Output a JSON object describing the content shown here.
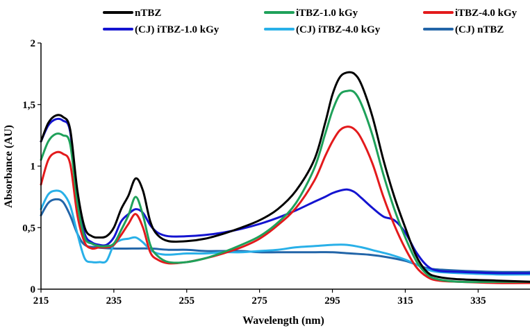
{
  "chart_data": {
    "type": "line",
    "title": "",
    "xlabel": "Wavelength (nm)",
    "ylabel": "Absorbance (AU)",
    "xlim": [
      215,
      350
    ],
    "ylim": [
      0,
      2
    ],
    "xticks": [
      "215",
      "235",
      "255",
      "275",
      "295",
      "315",
      "335"
    ],
    "yticks": [
      "0",
      "0,5",
      "1",
      "1,5",
      "2"
    ],
    "grid": false,
    "legend_position": "top",
    "series": [
      {
        "name": "nTBZ",
        "color": "#000000",
        "points": [
          [
            215,
            1.2
          ],
          [
            217,
            1.35
          ],
          [
            219,
            1.41
          ],
          [
            221,
            1.4
          ],
          [
            223,
            1.3
          ],
          [
            225,
            0.8
          ],
          [
            227,
            0.5
          ],
          [
            229,
            0.43
          ],
          [
            231,
            0.42
          ],
          [
            233,
            0.43
          ],
          [
            235,
            0.5
          ],
          [
            237,
            0.65
          ],
          [
            239,
            0.76
          ],
          [
            241,
            0.9
          ],
          [
            243,
            0.8
          ],
          [
            245,
            0.55
          ],
          [
            247,
            0.44
          ],
          [
            250,
            0.39
          ],
          [
            255,
            0.39
          ],
          [
            260,
            0.41
          ],
          [
            265,
            0.45
          ],
          [
            270,
            0.5
          ],
          [
            275,
            0.56
          ],
          [
            280,
            0.65
          ],
          [
            285,
            0.8
          ],
          [
            290,
            1.05
          ],
          [
            293,
            1.35
          ],
          [
            295,
            1.58
          ],
          [
            297,
            1.72
          ],
          [
            299,
            1.76
          ],
          [
            301,
            1.75
          ],
          [
            303,
            1.66
          ],
          [
            306,
            1.4
          ],
          [
            309,
            1.05
          ],
          [
            312,
            0.75
          ],
          [
            315,
            0.5
          ],
          [
            318,
            0.27
          ],
          [
            321,
            0.14
          ],
          [
            324,
            0.1
          ],
          [
            330,
            0.08
          ],
          [
            340,
            0.07
          ],
          [
            350,
            0.06
          ]
        ]
      },
      {
        "name": "iTBZ-1.0 kGy",
        "color": "#1fa15a",
        "points": [
          [
            215,
            1.05
          ],
          [
            217,
            1.2
          ],
          [
            219,
            1.26
          ],
          [
            221,
            1.25
          ],
          [
            223,
            1.18
          ],
          [
            225,
            0.7
          ],
          [
            227,
            0.42
          ],
          [
            229,
            0.37
          ],
          [
            231,
            0.35
          ],
          [
            233,
            0.35
          ],
          [
            235,
            0.37
          ],
          [
            237,
            0.48
          ],
          [
            239,
            0.6
          ],
          [
            241,
            0.75
          ],
          [
            243,
            0.6
          ],
          [
            245,
            0.36
          ],
          [
            247,
            0.27
          ],
          [
            250,
            0.22
          ],
          [
            255,
            0.22
          ],
          [
            260,
            0.25
          ],
          [
            265,
            0.3
          ],
          [
            270,
            0.36
          ],
          [
            275,
            0.43
          ],
          [
            280,
            0.54
          ],
          [
            285,
            0.7
          ],
          [
            290,
            0.98
          ],
          [
            293,
            1.26
          ],
          [
            295,
            1.45
          ],
          [
            297,
            1.58
          ],
          [
            299,
            1.61
          ],
          [
            301,
            1.6
          ],
          [
            303,
            1.5
          ],
          [
            306,
            1.25
          ],
          [
            309,
            0.93
          ],
          [
            312,
            0.65
          ],
          [
            315,
            0.42
          ],
          [
            318,
            0.23
          ],
          [
            321,
            0.12
          ],
          [
            324,
            0.08
          ],
          [
            330,
            0.06
          ],
          [
            340,
            0.06
          ],
          [
            350,
            0.06
          ]
        ]
      },
      {
        "name": "iTBZ-4.0 kGy",
        "color": "#e31a1c",
        "points": [
          [
            215,
            0.85
          ],
          [
            217,
            1.05
          ],
          [
            219,
            1.11
          ],
          [
            221,
            1.1
          ],
          [
            223,
            1.02
          ],
          [
            225,
            0.6
          ],
          [
            227,
            0.38
          ],
          [
            229,
            0.33
          ],
          [
            231,
            0.34
          ],
          [
            233,
            0.34
          ],
          [
            235,
            0.36
          ],
          [
            237,
            0.44
          ],
          [
            239,
            0.53
          ],
          [
            241,
            0.61
          ],
          [
            243,
            0.5
          ],
          [
            245,
            0.3
          ],
          [
            247,
            0.24
          ],
          [
            250,
            0.21
          ],
          [
            255,
            0.22
          ],
          [
            260,
            0.25
          ],
          [
            265,
            0.29
          ],
          [
            270,
            0.34
          ],
          [
            275,
            0.41
          ],
          [
            280,
            0.52
          ],
          [
            285,
            0.66
          ],
          [
            290,
            0.88
          ],
          [
            293,
            1.08
          ],
          [
            295,
            1.2
          ],
          [
            297,
            1.29
          ],
          [
            299,
            1.32
          ],
          [
            301,
            1.3
          ],
          [
            303,
            1.22
          ],
          [
            306,
            1.02
          ],
          [
            309,
            0.75
          ],
          [
            312,
            0.52
          ],
          [
            315,
            0.33
          ],
          [
            318,
            0.18
          ],
          [
            321,
            0.1
          ],
          [
            324,
            0.07
          ],
          [
            330,
            0.06
          ],
          [
            340,
            0.05
          ],
          [
            350,
            0.05
          ]
        ]
      },
      {
        "name": "(CJ) iTBZ-1.0 kGy",
        "color": "#1414d0",
        "points": [
          [
            215,
            1.2
          ],
          [
            217,
            1.33
          ],
          [
            219,
            1.38
          ],
          [
            221,
            1.37
          ],
          [
            223,
            1.28
          ],
          [
            225,
            0.75
          ],
          [
            227,
            0.45
          ],
          [
            229,
            0.38
          ],
          [
            231,
            0.36
          ],
          [
            233,
            0.36
          ],
          [
            235,
            0.42
          ],
          [
            237,
            0.55
          ],
          [
            239,
            0.61
          ],
          [
            241,
            0.65
          ],
          [
            243,
            0.62
          ],
          [
            245,
            0.52
          ],
          [
            247,
            0.46
          ],
          [
            250,
            0.43
          ],
          [
            255,
            0.43
          ],
          [
            260,
            0.44
          ],
          [
            265,
            0.46
          ],
          [
            270,
            0.49
          ],
          [
            275,
            0.53
          ],
          [
            280,
            0.58
          ],
          [
            285,
            0.64
          ],
          [
            290,
            0.71
          ],
          [
            293,
            0.75
          ],
          [
            295,
            0.78
          ],
          [
            297,
            0.8
          ],
          [
            299,
            0.81
          ],
          [
            301,
            0.79
          ],
          [
            303,
            0.74
          ],
          [
            306,
            0.66
          ],
          [
            309,
            0.59
          ],
          [
            312,
            0.56
          ],
          [
            315,
            0.46
          ],
          [
            318,
            0.3
          ],
          [
            321,
            0.19
          ],
          [
            324,
            0.15
          ],
          [
            330,
            0.14
          ],
          [
            340,
            0.13
          ],
          [
            350,
            0.13
          ]
        ]
      },
      {
        "name": "(CJ) iTBZ-4.0 kGy",
        "color": "#29b0e8",
        "points": [
          [
            215,
            0.65
          ],
          [
            217,
            0.77
          ],
          [
            219,
            0.8
          ],
          [
            221,
            0.78
          ],
          [
            223,
            0.68
          ],
          [
            225,
            0.45
          ],
          [
            227,
            0.25
          ],
          [
            229,
            0.22
          ],
          [
            231,
            0.22
          ],
          [
            233,
            0.23
          ],
          [
            235,
            0.36
          ],
          [
            237,
            0.4
          ],
          [
            239,
            0.41
          ],
          [
            241,
            0.42
          ],
          [
            243,
            0.38
          ],
          [
            245,
            0.32
          ],
          [
            247,
            0.29
          ],
          [
            250,
            0.28
          ],
          [
            255,
            0.29
          ],
          [
            260,
            0.29
          ],
          [
            265,
            0.3
          ],
          [
            270,
            0.3
          ],
          [
            275,
            0.31
          ],
          [
            280,
            0.32
          ],
          [
            285,
            0.34
          ],
          [
            290,
            0.35
          ],
          [
            295,
            0.36
          ],
          [
            299,
            0.36
          ],
          [
            303,
            0.34
          ],
          [
            307,
            0.31
          ],
          [
            311,
            0.28
          ],
          [
            315,
            0.24
          ],
          [
            318,
            0.2
          ],
          [
            321,
            0.16
          ],
          [
            324,
            0.14
          ],
          [
            330,
            0.13
          ],
          [
            340,
            0.12
          ],
          [
            350,
            0.12
          ]
        ]
      },
      {
        "name": "(CJ) nTBZ",
        "color": "#2265a8",
        "points": [
          [
            215,
            0.6
          ],
          [
            217,
            0.7
          ],
          [
            219,
            0.73
          ],
          [
            221,
            0.71
          ],
          [
            223,
            0.6
          ],
          [
            225,
            0.45
          ],
          [
            227,
            0.36
          ],
          [
            230,
            0.34
          ],
          [
            235,
            0.33
          ],
          [
            240,
            0.33
          ],
          [
            245,
            0.33
          ],
          [
            250,
            0.32
          ],
          [
            255,
            0.32
          ],
          [
            260,
            0.31
          ],
          [
            265,
            0.31
          ],
          [
            270,
            0.31
          ],
          [
            275,
            0.3
          ],
          [
            280,
            0.3
          ],
          [
            285,
            0.3
          ],
          [
            290,
            0.3
          ],
          [
            295,
            0.3
          ],
          [
            300,
            0.29
          ],
          [
            305,
            0.28
          ],
          [
            310,
            0.26
          ],
          [
            315,
            0.23
          ],
          [
            318,
            0.2
          ],
          [
            321,
            0.17
          ],
          [
            324,
            0.16
          ],
          [
            330,
            0.15
          ],
          [
            340,
            0.14
          ],
          [
            350,
            0.14
          ]
        ]
      }
    ]
  }
}
